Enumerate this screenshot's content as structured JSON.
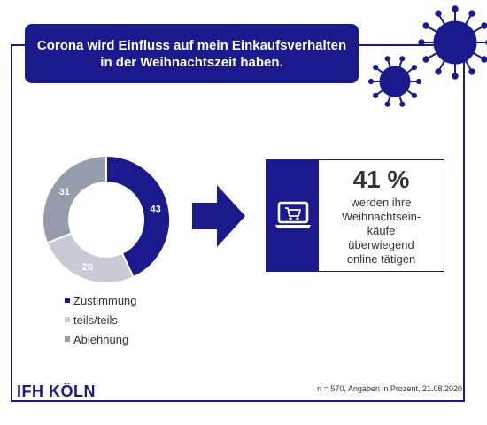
{
  "title": "Corona wird Einfluss auf mein Einkaufsverhalten in der Weihnachtszeit haben.",
  "chart_data": {
    "type": "pie",
    "donut": true,
    "slices": [
      {
        "label": "Zustimmung",
        "value": 43,
        "color": "#1a1a8c",
        "text_color": "#ffffff"
      },
      {
        "label": "teils/teils",
        "value": 26,
        "color": "#c8cbd6",
        "text_color": "#ffffff"
      },
      {
        "label": "Ablehnung",
        "value": 31,
        "color": "#959cac",
        "text_color": "#ffffff"
      }
    ],
    "legend_position": "bottom"
  },
  "info": {
    "percent": "41 %",
    "text_lines": [
      "werden ihre",
      "Weihnachtsein-",
      "käufe",
      "überwiegend",
      "online tätigen"
    ],
    "icon": "laptop-cart-icon"
  },
  "logo": "IFH KÖLN",
  "footnote": "n = 570, Angaben in Prozent, 21.08.2020",
  "colors": {
    "brand": "#1a1a8c",
    "light_gray": "#c8cbd6",
    "mid_gray": "#959cac"
  }
}
